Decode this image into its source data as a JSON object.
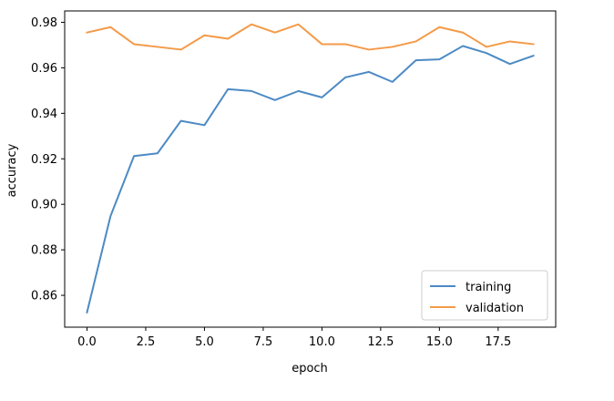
{
  "chart_data": {
    "type": "line",
    "xlabel": "epoch",
    "ylabel": "accuracy",
    "xlim": [
      -0.95,
      19.95
    ],
    "ylim": [
      0.846,
      0.985
    ],
    "xticks": [
      0.0,
      2.5,
      5.0,
      7.5,
      10.0,
      12.5,
      15.0,
      17.5
    ],
    "xtick_labels": [
      "0.0",
      "2.5",
      "5.0",
      "7.5",
      "10.0",
      "12.5",
      "15.0",
      "17.5"
    ],
    "yticks": [
      0.86,
      0.88,
      0.9,
      0.92,
      0.94,
      0.96,
      0.98
    ],
    "ytick_labels": [
      "0.86",
      "0.88",
      "0.90",
      "0.92",
      "0.94",
      "0.96",
      "0.98"
    ],
    "grid": false,
    "legend_position": "lower-right",
    "x": [
      0,
      1,
      2,
      3,
      4,
      5,
      6,
      7,
      8,
      9,
      10,
      11,
      12,
      13,
      14,
      15,
      16,
      17,
      18,
      19
    ],
    "series": [
      {
        "name": "training",
        "color": "#4c8ac4",
        "values": [
          0.8525,
          0.8948,
          0.9212,
          0.9224,
          0.9367,
          0.9348,
          0.9506,
          0.9498,
          0.9458,
          0.9498,
          0.947,
          0.9558,
          0.9582,
          0.9538,
          0.9633,
          0.9637,
          0.9696,
          0.9665,
          0.9617,
          0.9653
        ]
      },
      {
        "name": "validation",
        "color": "#f49a48",
        "values": [
          0.9755,
          0.9779,
          0.9704,
          0.9692,
          0.968,
          0.9743,
          0.9728,
          0.9791,
          0.9755,
          0.9791,
          0.9704,
          0.9704,
          0.968,
          0.9692,
          0.9716,
          0.9779,
          0.9755,
          0.9692,
          0.9716,
          0.9704
        ]
      }
    ]
  }
}
